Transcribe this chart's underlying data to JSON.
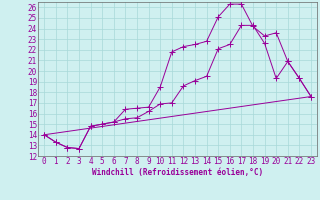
{
  "xlabel": "Windchill (Refroidissement éolien,°C)",
  "bg_color": "#cff0f0",
  "grid_color": "#a8d8d8",
  "line_color": "#990099",
  "spine_color": "#666666",
  "xlim": [
    -0.5,
    23.5
  ],
  "ylim": [
    12,
    26.5
  ],
  "xticks": [
    0,
    1,
    2,
    3,
    4,
    5,
    6,
    7,
    8,
    9,
    10,
    11,
    12,
    13,
    14,
    15,
    16,
    17,
    18,
    19,
    20,
    21,
    22,
    23
  ],
  "yticks": [
    12,
    13,
    14,
    15,
    16,
    17,
    18,
    19,
    20,
    21,
    22,
    23,
    24,
    25,
    26
  ],
  "line1_x": [
    0,
    1,
    2,
    3,
    4,
    5,
    6,
    7,
    8,
    9,
    10,
    11,
    12,
    13,
    14,
    15,
    16,
    17,
    18,
    19,
    20,
    21,
    22,
    23
  ],
  "line1_y": [
    14.0,
    13.3,
    12.8,
    12.7,
    14.8,
    15.0,
    15.2,
    16.4,
    16.5,
    16.6,
    18.5,
    21.8,
    22.3,
    22.5,
    22.8,
    25.1,
    26.3,
    26.3,
    24.2,
    23.3,
    23.6,
    20.9,
    19.3,
    17.6
  ],
  "line2_x": [
    0,
    1,
    2,
    3,
    4,
    5,
    6,
    7,
    8,
    9,
    10,
    11,
    12,
    13,
    14,
    15,
    16,
    17,
    18,
    19,
    20,
    21,
    22,
    23
  ],
  "line2_y": [
    14.0,
    13.3,
    12.8,
    12.7,
    14.8,
    15.0,
    15.2,
    15.5,
    15.6,
    16.2,
    16.9,
    17.0,
    18.6,
    19.1,
    19.5,
    22.1,
    22.5,
    24.3,
    24.3,
    22.6,
    19.3,
    20.9,
    19.3,
    17.6
  ],
  "line3_x": [
    0,
    23
  ],
  "line3_y": [
    14.0,
    17.6
  ],
  "markersize": 2.0,
  "linewidth": 0.7,
  "tick_fontsize": 5.5,
  "xlabel_fontsize": 5.5
}
